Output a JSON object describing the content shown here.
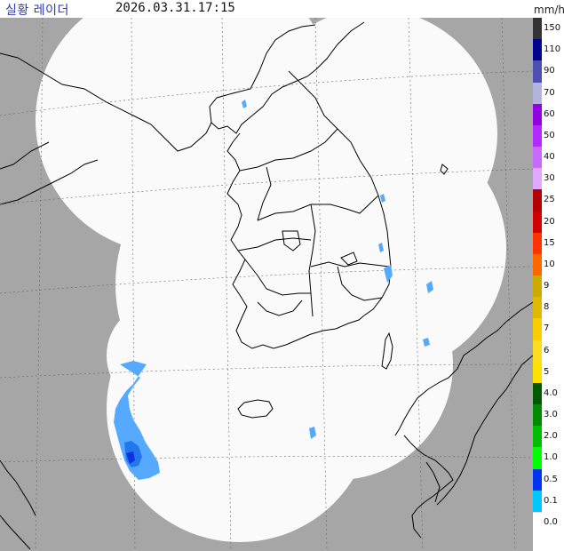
{
  "header": {
    "title": "실황 레이더",
    "timestamp": "2026.03.31.17:15",
    "unit": "mm/h"
  },
  "legend": {
    "labels": [
      "150",
      "110",
      "90",
      "70",
      "60",
      "50",
      "40",
      "30",
      "25",
      "20",
      "15",
      "10",
      "9",
      "8",
      "7",
      "6",
      "5",
      "4.0",
      "3.0",
      "2.0",
      "1.0",
      "0.5",
      "0.1",
      "0.0"
    ],
    "colors": [
      "#333333",
      "#000390",
      "#4c4eb1",
      "#b3b4de",
      "#9300e4",
      "#b329ff",
      "#c969ff",
      "#e0a9ff",
      "#b40000",
      "#d20000",
      "#ff3200",
      "#ff6600",
      "#ccaa00",
      "#e0b900",
      "#f9cd00",
      "#ffdc1f",
      "#ffe100",
      "#005a00",
      "#008c00",
      "#00be00",
      "#00ff00",
      "#0033f5",
      "#00c8ff",
      "#ffffff"
    ]
  },
  "map": {
    "colors": {
      "background": "#a6a6a6",
      "coverage": "#fafafa",
      "border": "#000000",
      "grid": "#666666",
      "rain_light": "#55aaff",
      "rain_medium": "#2277ee",
      "rain_heavy": "#1133dd"
    }
  }
}
